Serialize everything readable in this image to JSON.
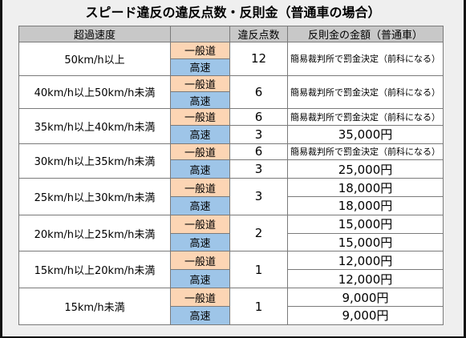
{
  "title": "スピード違反の違反点数・反則金（普通車の場合）",
  "headers": {
    "speed": "超過速度",
    "road": "",
    "points": "違反点数",
    "fine": "反則金の金額（普通車）"
  },
  "rows": [
    {
      "speed": "50km/h以上",
      "general": "一般道",
      "highway": "高速",
      "points_single": "12",
      "fine_single": "簡易裁判所で罰金決定（前科になる）"
    },
    {
      "speed": "40km/h以上50km/h未満",
      "general": "一般道",
      "highway": "高速",
      "points_single": "6",
      "fine_single": "簡易裁判所で罰金決定（前科になる）"
    },
    {
      "speed": "35km/h以上40km/h未満",
      "general": "一般道",
      "highway": "高速",
      "points_general": "6",
      "points_highway": "3",
      "fine_general": "簡易裁判所で罰金決定（前科になる）",
      "fine_highway": "35,000円"
    },
    {
      "speed": "30km/h以上35km/h未満",
      "general": "一般道",
      "highway": "高速",
      "points_general": "6",
      "points_highway": "3",
      "fine_general": "簡易裁判所で罰金決定（前科になる）",
      "fine_highway": "25,000円"
    },
    {
      "speed": "25km/h以上30km/h未満",
      "general": "一般道",
      "highway": "高速",
      "points_single": "3",
      "fine_general": "18,000円",
      "fine_highway": "18,000円"
    },
    {
      "speed": "20km/h以上25km/h未満",
      "general": "一般道",
      "highway": "高速",
      "points_single": "2",
      "fine_general": "15,000円",
      "fine_highway": "15,000円"
    },
    {
      "speed": "15km/h以上20km/h未満",
      "general": "一般道",
      "highway": "高速",
      "points_single": "1",
      "fine_general": "12,000円",
      "fine_highway": "12,000円"
    },
    {
      "speed": "15km/h未満",
      "general": "一般道",
      "highway": "高速",
      "points_single": "1",
      "fine_general": "9,000円",
      "fine_highway": "9,000円"
    }
  ]
}
